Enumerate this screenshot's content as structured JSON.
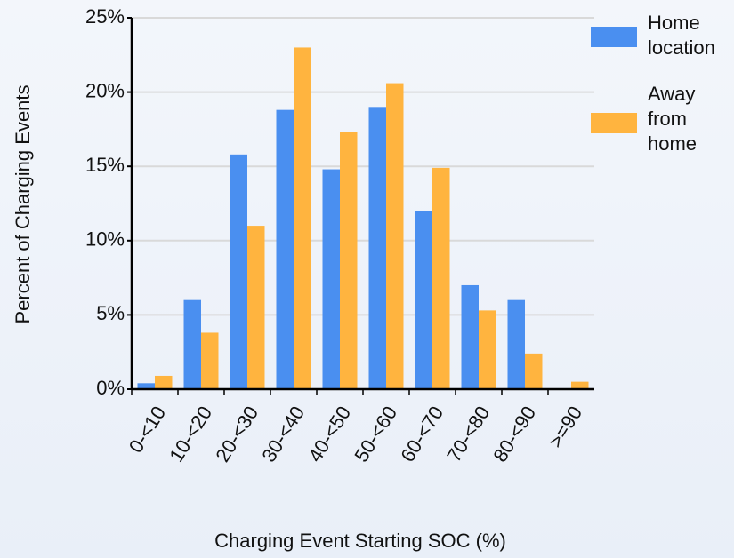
{
  "chart_data": {
    "type": "bar",
    "categories": [
      "0-<10",
      "10-<20",
      "20-<30",
      "30-<40",
      "40-<50",
      "50-<60",
      "60-<70",
      "70-<80",
      "80-<90",
      ">=90"
    ],
    "series": [
      {
        "name": "Home location",
        "color": "#4a8ff0",
        "values": [
          0.4,
          6.0,
          15.8,
          18.8,
          14.8,
          19.0,
          12.0,
          7.0,
          6.0,
          0
        ]
      },
      {
        "name": "Away from home",
        "color": "#ffb43f",
        "values": [
          0.9,
          3.8,
          11.0,
          23.0,
          17.3,
          20.6,
          14.9,
          5.3,
          2.4,
          0.5
        ]
      }
    ],
    "x_label": "Charging Event Starting SOC (%)",
    "y_label": "Percent of Charging Events",
    "ylim": [
      0,
      25
    ],
    "yticks": [
      {
        "value": 0,
        "label": "0%"
      },
      {
        "value": 5,
        "label": "5%"
      },
      {
        "value": 10,
        "label": "10%"
      },
      {
        "value": 15,
        "label": "15%"
      },
      {
        "value": 20,
        "label": "20%"
      },
      {
        "value": 25,
        "label": "25%"
      }
    ],
    "grid": true,
    "legend": "right"
  }
}
